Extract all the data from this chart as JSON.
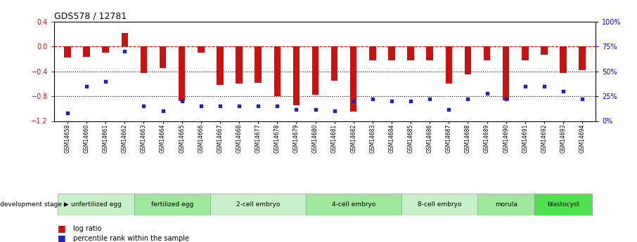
{
  "title": "GDS578 / 12781",
  "samples": [
    "GSM14658",
    "GSM14660",
    "GSM14661",
    "GSM14662",
    "GSM14663",
    "GSM14664",
    "GSM14665",
    "GSM14666",
    "GSM14667",
    "GSM14668",
    "GSM14677",
    "GSM14678",
    "GSM14679",
    "GSM14680",
    "GSM14681",
    "GSM14682",
    "GSM14683",
    "GSM14684",
    "GSM14685",
    "GSM14686",
    "GSM14687",
    "GSM14688",
    "GSM14689",
    "GSM14690",
    "GSM14691",
    "GSM14692",
    "GSM14693",
    "GSM14694"
  ],
  "log_ratio": [
    -0.18,
    -0.16,
    -0.1,
    0.22,
    -0.43,
    -0.35,
    -0.88,
    -0.1,
    -0.62,
    -0.6,
    -0.58,
    -0.8,
    -0.95,
    -0.78,
    -0.55,
    -1.05,
    -0.22,
    -0.22,
    -0.22,
    -0.22,
    -0.6,
    -0.45,
    -0.22,
    -0.87,
    -0.22,
    -0.13,
    -0.43,
    -0.38
  ],
  "percentile_rank": [
    8,
    35,
    40,
    70,
    15,
    10,
    20,
    15,
    15,
    15,
    15,
    15,
    12,
    12,
    10,
    20,
    22,
    20,
    20,
    22,
    12,
    22,
    28,
    22,
    35,
    35,
    30,
    22
  ],
  "stages": [
    {
      "label": "unfertilized egg",
      "start": 0,
      "end": 4,
      "color": "#c8f0c8"
    },
    {
      "label": "fertilized egg",
      "start": 4,
      "end": 8,
      "color": "#a0e8a0"
    },
    {
      "label": "2-cell embryo",
      "start": 8,
      "end": 13,
      "color": "#c8f0c8"
    },
    {
      "label": "4-cell embryo",
      "start": 13,
      "end": 18,
      "color": "#a0e8a0"
    },
    {
      "label": "8-cell embryo",
      "start": 18,
      "end": 22,
      "color": "#c8f0c8"
    },
    {
      "label": "morula",
      "start": 22,
      "end": 25,
      "color": "#a0e8a0"
    },
    {
      "label": "blastocyst",
      "start": 25,
      "end": 28,
      "color": "#50e050"
    }
  ],
  "bar_color": "#cc1111",
  "dot_color": "#2222bb",
  "ylim_left": [
    -1.2,
    0.4
  ],
  "ylim_right": [
    0,
    100
  ],
  "yticks_left": [
    -1.2,
    -0.8,
    -0.4,
    0.0,
    0.4
  ],
  "yticks_right": [
    0,
    25,
    50,
    75,
    100
  ],
  "hline_y": 0.0,
  "hline_color": "#cc1111",
  "dotted_lines": [
    -0.4,
    -0.8
  ],
  "background_color": "#ffffff",
  "stage_label_color": "#444444",
  "spine_color": "#aaaaaa"
}
